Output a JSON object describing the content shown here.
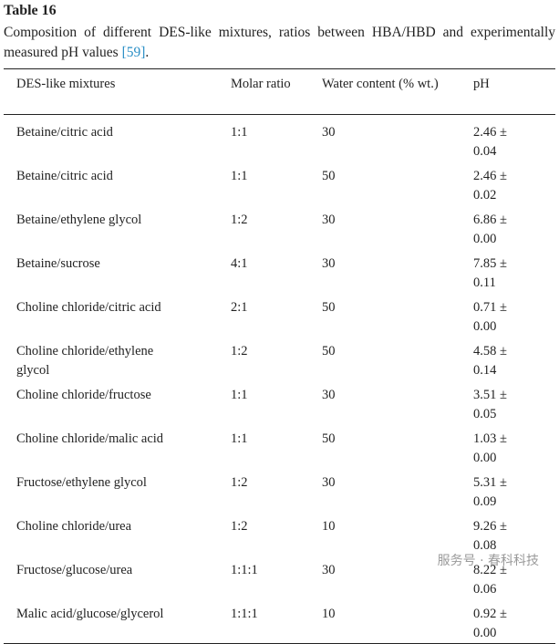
{
  "title": "Table 16",
  "caption": {
    "text": "Composition of different DES-like mixtures, ratios between HBA/HBD and experimentally measured pH values ",
    "ref": "[59]",
    "end": "."
  },
  "table": {
    "header": [
      "DES-like mixtures",
      "Molar ratio",
      "Water content (% wt.)",
      "pH"
    ],
    "rows": [
      [
        "Betaine/citric acid",
        "1:1",
        "30",
        "2.46 ± 0.04"
      ],
      [
        "Betaine/citric acid",
        "1:1",
        "50",
        "2.46 ± 0.02"
      ],
      [
        "Betaine/ethylene glycol",
        "1:2",
        "30",
        "6.86 ± 0.00"
      ],
      [
        "Betaine/sucrose",
        "4:1",
        "30",
        "7.85 ± 0.11"
      ],
      [
        "Choline chloride/citric acid",
        "2:1",
        "50",
        "0.71 ± 0.00"
      ],
      [
        "Choline chloride/ethylene glycol",
        "1:2",
        "50",
        "4.58 ± 0.14"
      ],
      [
        "Choline chloride/fructose",
        "1:1",
        "30",
        "3.51 ± 0.05"
      ],
      [
        "Choline chloride/malic acid",
        "1:1",
        "50",
        "1.03 ± 0.00"
      ],
      [
        "Fructose/ethylene glycol",
        "1:2",
        "30",
        "5.31 ± 0.09"
      ],
      [
        "Choline chloride/urea",
        "1:2",
        "10",
        "9.26 ± 0.08"
      ],
      [
        "Fructose/glucose/urea",
        "1:1:1",
        "30",
        "8.22 ± 0.06"
      ],
      [
        "Malic acid/glucose/glycerol",
        "1:1:1",
        "10",
        "0.92 ± 0.00"
      ]
    ]
  },
  "watermark": "服务号 · 春科科技"
}
